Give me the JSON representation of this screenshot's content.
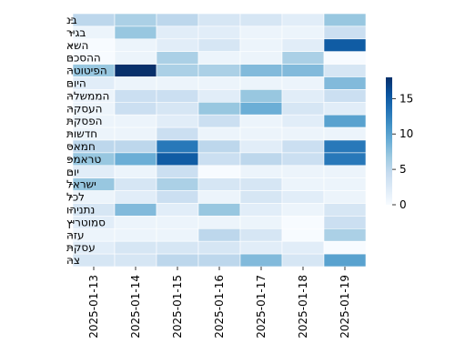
{
  "chart_data": {
    "type": "heatmap",
    "title": "",
    "xlabel": "",
    "ylabel": "",
    "x": [
      "2025-01-13",
      "2025-01-14",
      "2025-01-15",
      "2025-01-16",
      "2025-01-17",
      "2025-01-18",
      "2025-01-19"
    ],
    "y": [
      "בנ",
      "בגיר",
      "השא",
      "ההסכם",
      "הפיטוטה",
      "היום",
      "הממשלה",
      "העסקה",
      "הפסקת",
      "חדשות",
      "חמאס",
      "טראמפ",
      "יום",
      "ישראל",
      "לכל",
      "נתניהו",
      "סמוטריץ",
      "עזה",
      "עסקת",
      "צה"
    ],
    "values": [
      [
        5,
        6,
        5,
        3,
        3,
        2,
        7
      ],
      [
        1,
        7,
        2,
        2,
        1,
        1,
        4
      ],
      [
        0,
        1,
        2,
        3,
        1,
        2,
        15
      ],
      [
        0,
        1,
        6,
        1,
        1,
        6,
        0
      ],
      [
        7,
        18,
        6,
        6,
        8,
        8,
        3
      ],
      [
        2,
        1,
        1,
        1,
        1,
        1,
        8
      ],
      [
        1,
        4,
        4,
        2,
        7,
        2,
        4
      ],
      [
        1,
        4,
        3,
        7,
        9,
        3,
        2
      ],
      [
        1,
        1,
        2,
        4,
        1,
        2,
        10
      ],
      [
        1,
        1,
        4,
        1,
        1,
        1,
        1
      ],
      [
        5,
        5,
        13,
        5,
        2,
        4,
        13
      ],
      [
        7,
        9,
        15,
        4,
        5,
        4,
        13
      ],
      [
        2,
        1,
        4,
        0,
        1,
        1,
        1
      ],
      [
        7,
        3,
        6,
        3,
        3,
        1,
        1
      ],
      [
        1,
        2,
        4,
        1,
        3,
        2,
        1
      ],
      [
        3,
        8,
        2,
        7,
        2,
        1,
        3
      ],
      [
        2,
        1,
        1,
        1,
        1,
        0,
        4
      ],
      [
        1,
        1,
        1,
        5,
        3,
        0,
        6
      ],
      [
        2,
        3,
        3,
        3,
        2,
        2,
        0
      ],
      [
        3,
        3,
        5,
        5,
        8,
        3,
        10
      ]
    ],
    "vmin": 0,
    "vmax": 18,
    "colorbar_ticks": [
      0,
      5,
      10,
      15
    ],
    "colormap": [
      "#f7fbff",
      "#deebf7",
      "#c6dbef",
      "#9ecae1",
      "#6baed6",
      "#4292c6",
      "#2171b5",
      "#08519c",
      "#08306b"
    ]
  }
}
